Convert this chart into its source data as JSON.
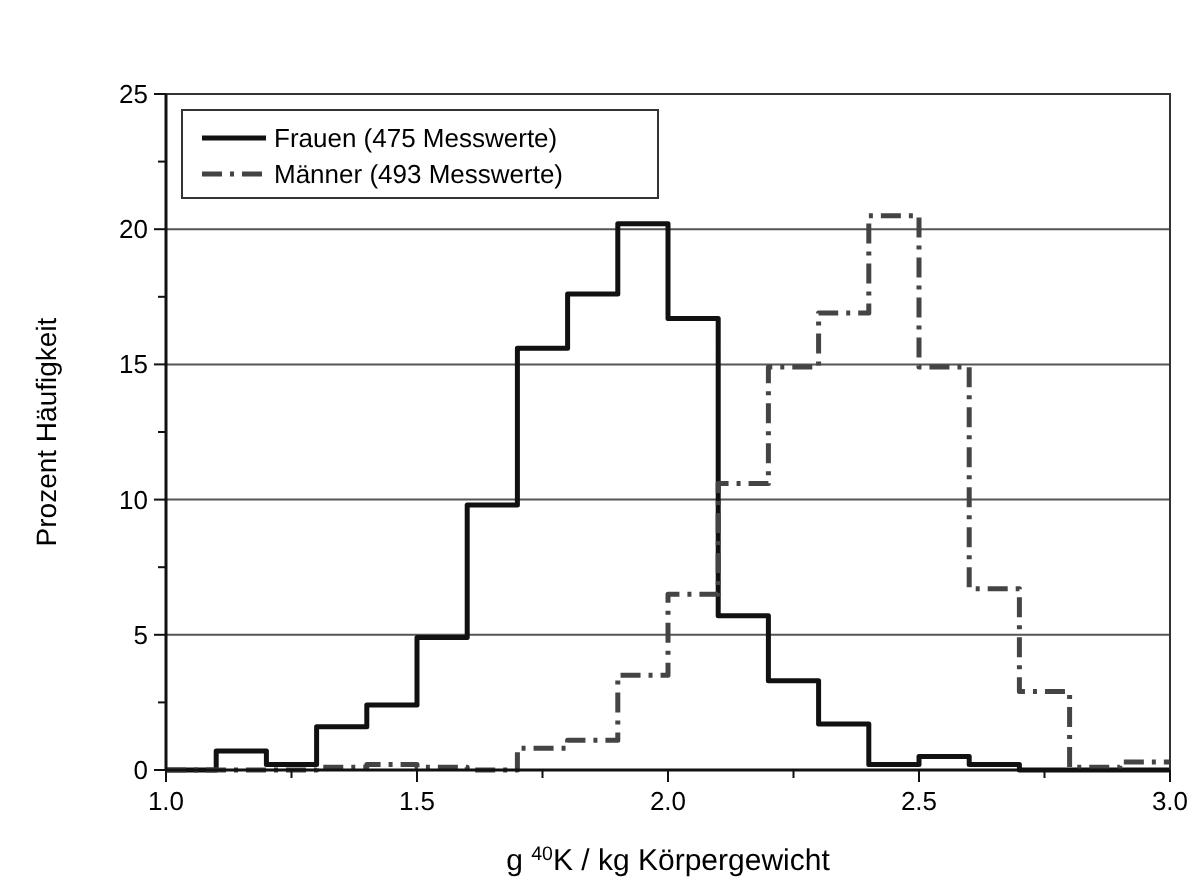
{
  "chart_data": {
    "type": "histogram",
    "xlabel": "g $^{40}$K / kg Körpergewicht",
    "ylabel": "Prozent Häufigkeit",
    "bins": [
      1.0,
      1.1,
      1.2,
      1.3,
      1.4,
      1.5,
      1.6,
      1.7,
      1.8,
      1.9,
      2.0,
      2.1,
      2.2,
      2.3,
      2.4,
      2.5,
      2.6,
      2.7,
      2.8,
      2.9,
      3.0
    ],
    "series": [
      {
        "name": "Frauen (475 Messwerte)",
        "color": "#111111",
        "line_style": "solid",
        "values": [
          0,
          0.7,
          0.2,
          1.6,
          2.4,
          4.9,
          9.8,
          15.6,
          17.6,
          20.2,
          16.7,
          5.7,
          3.3,
          1.7,
          0.2,
          0.5,
          0.2,
          0,
          0,
          0
        ]
      },
      {
        "name": "Männer (493 Messwerte)",
        "color": "#444444",
        "line_style": "dashed",
        "values": [
          0,
          0,
          0,
          0.1,
          0.2,
          0.1,
          0,
          0.8,
          1.1,
          3.5,
          6.5,
          10.6,
          14.9,
          16.9,
          20.5,
          14.9,
          6.7,
          2.9,
          0.1,
          0.3
        ]
      }
    ],
    "xlim": [
      1.0,
      3.0
    ],
    "xticks": [
      {
        "value": 1.0,
        "label": "1.0"
      },
      {
        "value": 1.25,
        "label": null
      },
      {
        "value": 1.5,
        "label": "1.5"
      },
      {
        "value": 1.75,
        "label": null
      },
      {
        "value": 2.0,
        "label": "2.0"
      },
      {
        "value": 2.25,
        "label": null
      },
      {
        "value": 2.5,
        "label": "2.5"
      },
      {
        "value": 2.75,
        "label": null
      },
      {
        "value": 3.0,
        "label": "3.0"
      }
    ],
    "ylim": [
      0,
      25
    ],
    "yticks": [
      0,
      {
        "value": 2.5,
        "label": null
      },
      5,
      {
        "value": 7.5,
        "label": null
      },
      10,
      {
        "value": 12.5,
        "label": null
      },
      15,
      {
        "value": 17.5,
        "label": null
      },
      20,
      {
        "value": 22.5,
        "label": null
      },
      25
    ],
    "grid": "y",
    "legend": "top left"
  }
}
